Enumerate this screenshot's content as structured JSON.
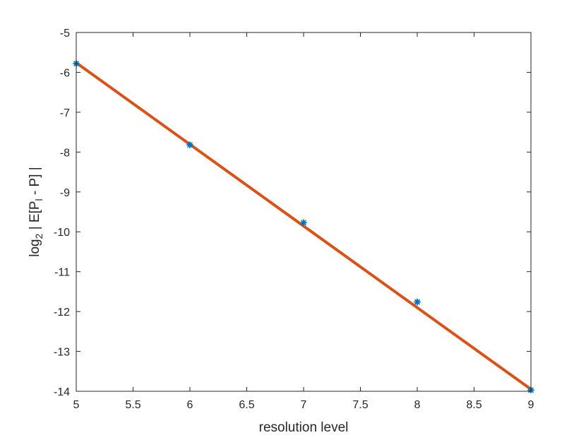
{
  "chart_data": {
    "type": "line",
    "title": "",
    "xlabel": "resolution level",
    "ylabel_parts": {
      "a": "log",
      "b": "2",
      "c": " | E[P",
      "d": "l",
      "e": " - P] |"
    },
    "xlim": [
      5,
      9
    ],
    "ylim": [
      -14,
      -5
    ],
    "x_ticks": [
      5,
      5.5,
      6,
      6.5,
      7,
      7.5,
      8,
      8.5,
      9
    ],
    "x_tick_labels": [
      "5",
      "5.5",
      "6",
      "6.5",
      "7",
      "7.5",
      "8",
      "8.5",
      "9"
    ],
    "y_ticks": [
      -5,
      -6,
      -7,
      -8,
      -9,
      -10,
      -11,
      -12,
      -13,
      -14
    ],
    "y_tick_labels": [
      "-5",
      "-6",
      "-7",
      "-8",
      "-9",
      "-10",
      "-11",
      "-12",
      "-13",
      "-14"
    ],
    "grid": false,
    "series": [
      {
        "kind": "scatter",
        "marker": "asterisk",
        "color": "#0072BD",
        "x": [
          5,
          6,
          7,
          8,
          9
        ],
        "y": [
          -5.78,
          -7.82,
          -9.77,
          -11.76,
          -13.97
        ]
      },
      {
        "kind": "line",
        "color": "#D95319",
        "x": [
          5,
          9
        ],
        "y": [
          -5.76,
          -13.95
        ]
      }
    ]
  }
}
